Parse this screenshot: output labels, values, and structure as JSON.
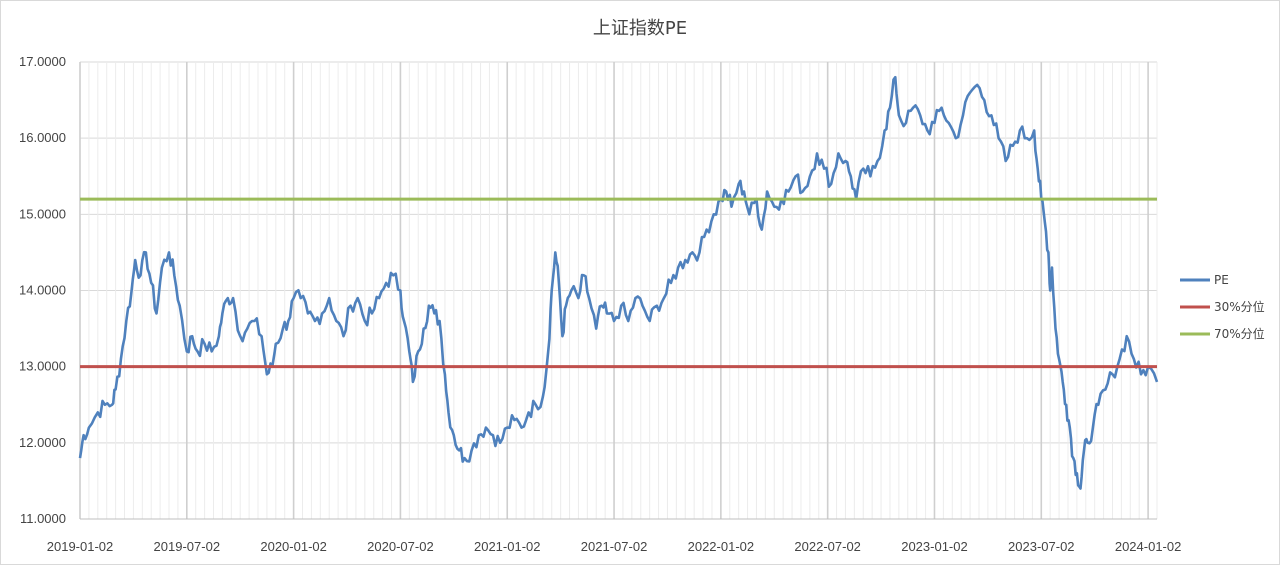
{
  "chart_data": {
    "type": "line",
    "title": "上证指数PE",
    "xlabel": "",
    "ylabel": "",
    "ylim": [
      11.0,
      17.0
    ],
    "y_ticks": [
      "11.0000",
      "12.0000",
      "13.0000",
      "14.0000",
      "15.0000",
      "16.0000",
      "17.0000"
    ],
    "x_tick_labels": [
      "2019-01-02",
      "2019-07-02",
      "2020-01-02",
      "2020-07-02",
      "2021-01-02",
      "2021-07-02",
      "2022-01-02",
      "2022-07-02",
      "2023-01-02",
      "2023-07-02",
      "2024-01-02"
    ],
    "x_range_months": [
      0,
      60.5
    ],
    "legend_position": "right",
    "series": [
      {
        "name": "PE",
        "color": "#4f81bd",
        "points": [
          [
            0,
            11.8
          ],
          [
            0.2,
            12.1
          ],
          [
            0.5,
            12.2
          ],
          [
            1,
            12.4
          ],
          [
            1.4,
            12.5
          ],
          [
            1.8,
            12.5
          ],
          [
            2,
            12.7
          ],
          [
            2.3,
            13.1
          ],
          [
            2.6,
            13.6
          ],
          [
            2.9,
            14.0
          ],
          [
            3.1,
            14.4
          ],
          [
            3.4,
            14.2
          ],
          [
            3.7,
            14.5
          ],
          [
            4,
            14.1
          ],
          [
            4.3,
            13.7
          ],
          [
            4.6,
            14.3
          ],
          [
            5,
            14.5
          ],
          [
            5.3,
            14.2
          ],
          [
            5.6,
            13.8
          ],
          [
            6,
            13.2
          ],
          [
            6.3,
            13.4
          ],
          [
            6.6,
            13.2
          ],
          [
            7,
            13.3
          ],
          [
            7.4,
            13.2
          ],
          [
            7.8,
            13.4
          ],
          [
            8,
            13.7
          ],
          [
            8.3,
            13.9
          ],
          [
            8.6,
            13.9
          ],
          [
            9,
            13.4
          ],
          [
            9.4,
            13.5
          ],
          [
            9.8,
            13.6
          ],
          [
            10.2,
            13.4
          ],
          [
            10.5,
            12.9
          ],
          [
            10.8,
            13.0
          ],
          [
            11,
            13.3
          ],
          [
            11.4,
            13.5
          ],
          [
            11.7,
            13.6
          ],
          [
            12,
            13.9
          ],
          [
            12.4,
            13.9
          ],
          [
            12.8,
            13.7
          ],
          [
            13.2,
            13.6
          ],
          [
            13.6,
            13.7
          ],
          [
            14,
            13.9
          ],
          [
            14.4,
            13.6
          ],
          [
            14.8,
            13.4
          ],
          [
            15.2,
            13.8
          ],
          [
            15.6,
            13.9
          ],
          [
            16,
            13.6
          ],
          [
            16.4,
            13.7
          ],
          [
            16.8,
            13.9
          ],
          [
            17.2,
            14.1
          ],
          [
            17.6,
            14.2
          ],
          [
            18,
            14.0
          ],
          [
            18.2,
            13.6
          ],
          [
            18.5,
            13.2
          ],
          [
            18.7,
            12.8
          ],
          [
            19,
            13.2
          ],
          [
            19.3,
            13.5
          ],
          [
            19.6,
            13.8
          ],
          [
            19.9,
            13.7
          ],
          [
            20.2,
            13.6
          ],
          [
            20.5,
            12.9
          ],
          [
            20.7,
            12.4
          ],
          [
            21,
            12.1
          ],
          [
            21.3,
            11.9
          ],
          [
            21.6,
            11.8
          ],
          [
            22,
            11.9
          ],
          [
            22.4,
            12.1
          ],
          [
            22.8,
            12.2
          ],
          [
            23.2,
            12.1
          ],
          [
            23.6,
            12.0
          ],
          [
            24,
            12.2
          ],
          [
            24.4,
            12.3
          ],
          [
            24.8,
            12.2
          ],
          [
            25.2,
            12.4
          ],
          [
            25.6,
            12.5
          ],
          [
            26,
            12.6
          ],
          [
            26.3,
            13.2
          ],
          [
            26.5,
            14.0
          ],
          [
            26.7,
            14.5
          ],
          [
            26.9,
            14.1
          ],
          [
            27.1,
            13.4
          ],
          [
            27.3,
            13.8
          ],
          [
            27.6,
            14.0
          ],
          [
            28,
            13.9
          ],
          [
            28.3,
            14.2
          ],
          [
            28.6,
            13.9
          ],
          [
            29,
            13.5
          ],
          [
            29.3,
            13.8
          ],
          [
            29.6,
            13.7
          ],
          [
            30,
            13.6
          ],
          [
            30.4,
            13.8
          ],
          [
            30.8,
            13.6
          ],
          [
            31.2,
            13.9
          ],
          [
            31.6,
            13.8
          ],
          [
            32,
            13.6
          ],
          [
            32.4,
            13.8
          ],
          [
            32.8,
            13.9
          ],
          [
            33.2,
            14.1
          ],
          [
            33.6,
            14.3
          ],
          [
            34,
            14.4
          ],
          [
            34.4,
            14.5
          ],
          [
            34.8,
            14.5
          ],
          [
            35.2,
            14.8
          ],
          [
            35.6,
            15.0
          ],
          [
            36,
            15.2
          ],
          [
            36.3,
            15.3
          ],
          [
            36.6,
            15.1
          ],
          [
            37,
            15.4
          ],
          [
            37.3,
            15.3
          ],
          [
            37.6,
            15.0
          ],
          [
            38,
            15.2
          ],
          [
            38.3,
            14.8
          ],
          [
            38.6,
            15.3
          ],
          [
            39,
            15.1
          ],
          [
            39.4,
            15.2
          ],
          [
            39.8,
            15.3
          ],
          [
            40.2,
            15.5
          ],
          [
            40.6,
            15.3
          ],
          [
            41,
            15.5
          ],
          [
            41.4,
            15.8
          ],
          [
            41.8,
            15.6
          ],
          [
            42.2,
            15.4
          ],
          [
            42.6,
            15.8
          ],
          [
            43,
            15.7
          ],
          [
            43.3,
            15.5
          ],
          [
            43.6,
            15.2
          ],
          [
            44,
            15.6
          ],
          [
            44.4,
            15.5
          ],
          [
            44.8,
            15.7
          ],
          [
            45.2,
            16.1
          ],
          [
            45.5,
            16.4
          ],
          [
            45.8,
            16.8
          ],
          [
            46,
            16.3
          ],
          [
            46.4,
            16.2
          ],
          [
            46.8,
            16.4
          ],
          [
            47.2,
            16.3
          ],
          [
            47.6,
            16.1
          ],
          [
            48,
            16.2
          ],
          [
            48.4,
            16.4
          ],
          [
            48.8,
            16.2
          ],
          [
            49.2,
            16.0
          ],
          [
            49.6,
            16.3
          ],
          [
            50,
            16.6
          ],
          [
            50.4,
            16.7
          ],
          [
            50.8,
            16.5
          ],
          [
            51.2,
            16.3
          ],
          [
            51.6,
            16.0
          ],
          [
            52,
            15.7
          ],
          [
            52.4,
            15.9
          ],
          [
            52.8,
            16.1
          ],
          [
            53.2,
            16.0
          ],
          [
            53.6,
            16.1
          ],
          [
            53.8,
            15.6
          ],
          [
            54,
            15.2
          ],
          [
            54.2,
            14.9
          ],
          [
            54.4,
            14.5
          ],
          [
            54.5,
            14.0
          ],
          [
            54.6,
            14.3
          ],
          [
            54.8,
            13.5
          ],
          [
            55,
            13.1
          ],
          [
            55.2,
            12.8
          ],
          [
            55.4,
            12.5
          ],
          [
            55.6,
            12.2
          ],
          [
            55.8,
            11.8
          ],
          [
            56,
            11.6
          ],
          [
            56.2,
            11.4
          ],
          [
            56.4,
            11.9
          ],
          [
            56.6,
            12.0
          ],
          [
            56.9,
            12.2
          ],
          [
            57.2,
            12.5
          ],
          [
            57.6,
            12.7
          ],
          [
            58,
            12.9
          ],
          [
            58.4,
            13.1
          ],
          [
            58.8,
            13.4
          ],
          [
            59.2,
            13.1
          ],
          [
            59.6,
            12.9
          ],
          [
            60,
            13.0
          ],
          [
            60.5,
            12.8
          ]
        ]
      },
      {
        "name": "30%分位",
        "color": "#c0504d",
        "constant": 13.0
      },
      {
        "name": "70%分位",
        "color": "#9bbb59",
        "constant": 15.2
      }
    ]
  }
}
